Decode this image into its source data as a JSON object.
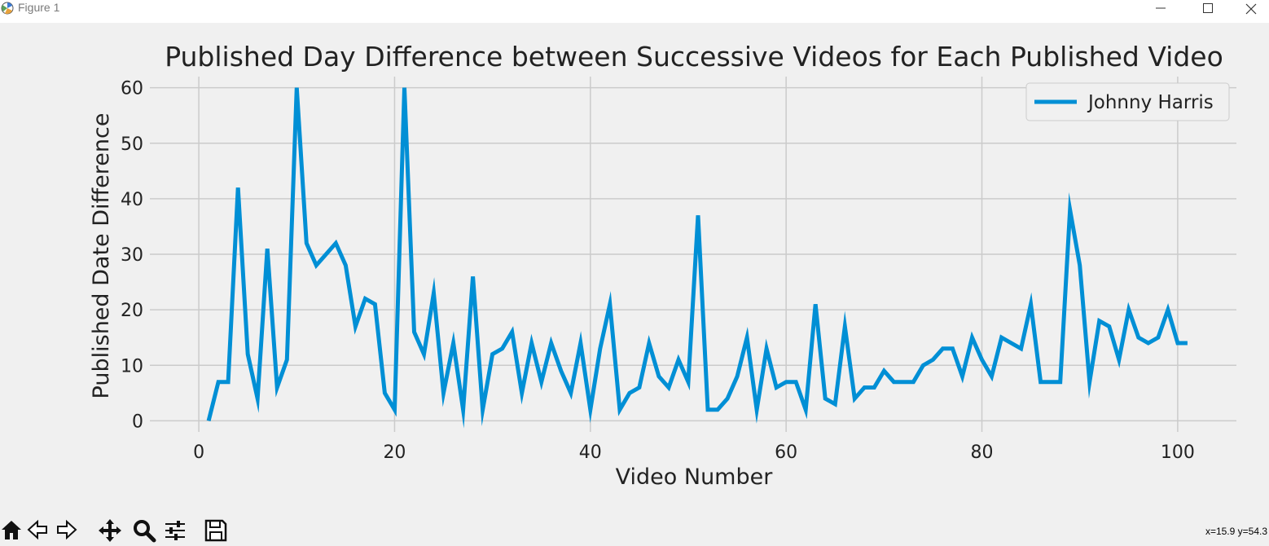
{
  "window": {
    "title": "Figure 1"
  },
  "toolbar": {
    "items": [
      {
        "name": "home-icon"
      },
      {
        "name": "back-icon"
      },
      {
        "name": "forward-icon"
      },
      {
        "name": "pan-icon"
      },
      {
        "name": "zoom-icon"
      },
      {
        "name": "configure-subplots-icon"
      },
      {
        "name": "save-icon"
      }
    ],
    "coords": "x=15.9 y=54.3"
  },
  "colors": {
    "line": "#008fd5",
    "grid": "#cbcbcb",
    "background": "#f0f0f0"
  },
  "chart_data": {
    "type": "line",
    "title": "Published Day Difference between Successive Videos for Each Published Video",
    "xlabel": "Video Number",
    "ylabel": "Published Date Difference",
    "xlim": [
      -5,
      106
    ],
    "ylim": [
      -2,
      62
    ],
    "xticks": [
      0,
      20,
      40,
      60,
      80,
      100
    ],
    "yticks": [
      0,
      10,
      20,
      30,
      40,
      50,
      60
    ],
    "grid": true,
    "legend": "top-right",
    "series": [
      {
        "name": "Johnny Harris",
        "x": [
          1,
          2,
          3,
          4,
          5,
          6,
          7,
          8,
          9,
          10,
          11,
          12,
          13,
          14,
          15,
          16,
          17,
          18,
          19,
          20,
          21,
          22,
          23,
          24,
          25,
          26,
          27,
          28,
          29,
          30,
          31,
          32,
          33,
          34,
          35,
          36,
          37,
          38,
          39,
          40,
          41,
          42,
          43,
          44,
          45,
          46,
          47,
          48,
          49,
          50,
          51,
          52,
          53,
          54,
          55,
          56,
          57,
          58,
          59,
          60,
          61,
          62,
          63,
          64,
          65,
          66,
          67,
          68,
          69,
          70,
          71,
          72,
          73,
          74,
          75,
          76,
          77,
          78,
          79,
          80,
          81,
          82,
          83,
          84,
          85,
          86,
          87,
          88,
          89,
          90,
          91,
          92,
          93,
          94,
          95,
          96,
          97,
          98,
          99,
          100,
          101
        ],
        "values": [
          0,
          7,
          7,
          42,
          12,
          4,
          31,
          6,
          11,
          60,
          32,
          28,
          30,
          32,
          28,
          17,
          22,
          21,
          5,
          2,
          60,
          16,
          12,
          23,
          5,
          14,
          2,
          26,
          2,
          12,
          13,
          16,
          5,
          14,
          7,
          14,
          9,
          5,
          14,
          2,
          13,
          21,
          2,
          5,
          6,
          14,
          8,
          6,
          11,
          7,
          37,
          2,
          2,
          4,
          8,
          15,
          2,
          13,
          6,
          7,
          7,
          2,
          21,
          4,
          3,
          17,
          4,
          6,
          6,
          9,
          7,
          7,
          7,
          10,
          11,
          13,
          13,
          8,
          15,
          11,
          8,
          15,
          14,
          13,
          21,
          7,
          7,
          7,
          38,
          28,
          7,
          18,
          17,
          11,
          20,
          15,
          14,
          15,
          20,
          14,
          14
        ]
      }
    ]
  }
}
